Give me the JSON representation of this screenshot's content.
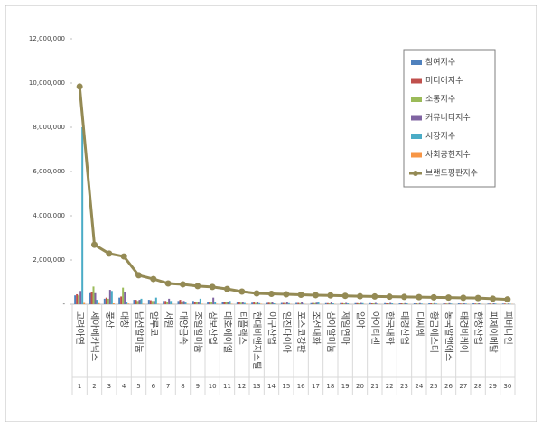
{
  "chart_data": {
    "type": "bar_line",
    "categories": [
      "고려아연",
      "세아메카닉스",
      "풍산",
      "대창",
      "남선알미늄",
      "알루코",
      "서원",
      "대양금속",
      "조일알미늄",
      "삼보산업",
      "대호에이엘",
      "티플랙스",
      "현대비앤지스틸",
      "이구산업",
      "일진다이아",
      "포스코강판",
      "조선내화",
      "삼아알미늄",
      "제일연마",
      "일야",
      "아이티센",
      "한국내화",
      "태경산업",
      "디씨엠",
      "황금에스티",
      "동국알앤에스",
      "태경비케이",
      "한창산업",
      "피제이메탈",
      "파버나인"
    ],
    "category_ranks": [
      1,
      2,
      3,
      4,
      5,
      6,
      7,
      8,
      9,
      10,
      11,
      12,
      13,
      14,
      15,
      16,
      17,
      18,
      19,
      20,
      21,
      22,
      23,
      24,
      25,
      26,
      27,
      28,
      29,
      30
    ],
    "series": [
      {
        "name": "참여지수",
        "color": "#4f81bd",
        "values": [
          400000,
          500000,
          250000,
          300000,
          200000,
          200000,
          150000,
          150000,
          150000,
          120000,
          90000,
          80000,
          70000,
          60000,
          60000,
          60000,
          50000,
          50000,
          50000,
          50000,
          50000,
          50000,
          40000,
          40000,
          40000,
          40000,
          40000,
          40000,
          30000,
          30000
        ]
      },
      {
        "name": "미디어지수",
        "color": "#c0504d",
        "values": [
          450000,
          550000,
          300000,
          350000,
          200000,
          180000,
          150000,
          200000,
          120000,
          100000,
          100000,
          90000,
          80000,
          70000,
          60000,
          60000,
          60000,
          50000,
          50000,
          50000,
          40000,
          40000,
          40000,
          40000,
          40000,
          30000,
          30000,
          30000,
          30000,
          30000
        ]
      },
      {
        "name": "소통지수",
        "color": "#9bbb59",
        "values": [
          400000,
          800000,
          250000,
          750000,
          150000,
          150000,
          100000,
          120000,
          100000,
          80000,
          80000,
          70000,
          60000,
          60000,
          50000,
          50000,
          50000,
          40000,
          40000,
          40000,
          40000,
          40000,
          30000,
          30000,
          30000,
          30000,
          30000,
          30000,
          20000,
          20000
        ]
      },
      {
        "name": "커뮤니티지수",
        "color": "#8064a2",
        "values": [
          600000,
          500000,
          650000,
          550000,
          200000,
          150000,
          250000,
          150000,
          100000,
          300000,
          120000,
          100000,
          80000,
          100000,
          80000,
          90000,
          70000,
          80000,
          60000,
          60000,
          60000,
          60000,
          50000,
          50000,
          50000,
          50000,
          40000,
          40000,
          40000,
          30000
        ]
      },
      {
        "name": "시장지수",
        "color": "#4bacc6",
        "values": [
          8000000,
          200000,
          600000,
          100000,
          250000,
          300000,
          150000,
          80000,
          250000,
          100000,
          150000,
          60000,
          50000,
          40000,
          50000,
          30000,
          80000,
          40000,
          40000,
          50000,
          30000,
          40000,
          40000,
          30000,
          30000,
          30000,
          30000,
          30000,
          30000,
          20000
        ]
      },
      {
        "name": "사회공헌지수",
        "color": "#f79646",
        "values": [
          60000,
          50000,
          40000,
          30000,
          20000,
          20000,
          20000,
          20000,
          20000,
          20000,
          20000,
          20000,
          20000,
          20000,
          10000,
          10000,
          10000,
          10000,
          10000,
          10000,
          10000,
          10000,
          10000,
          10000,
          10000,
          10000,
          10000,
          10000,
          10000,
          10000
        ]
      },
      {
        "name": "브랜드평판지수",
        "color": "#948a54",
        "line": true,
        "values": [
          9840000,
          2690000,
          2290000,
          2160000,
          1310000,
          1140000,
          940000,
          900000,
          820000,
          780000,
          690000,
          570000,
          490000,
          470000,
          450000,
          430000,
          410000,
          400000,
          380000,
          360000,
          350000,
          340000,
          330000,
          320000,
          310000,
          300000,
          290000,
          280000,
          250000,
          220000
        ]
      }
    ],
    "ylim": [
      0,
      12000000
    ],
    "yticks": [
      {
        "value": 0,
        "label": "-"
      },
      {
        "value": 2000000,
        "label": "2,000,000"
      },
      {
        "value": 4000000,
        "label": "4,000,000"
      },
      {
        "value": 6000000,
        "label": "6,000,000"
      },
      {
        "value": 8000000,
        "label": "8,000,000"
      },
      {
        "value": 10000000,
        "label": "10,000,000"
      },
      {
        "value": 12000000,
        "label": "12,000,000"
      }
    ],
    "grid": false,
    "legend": "upper right"
  }
}
